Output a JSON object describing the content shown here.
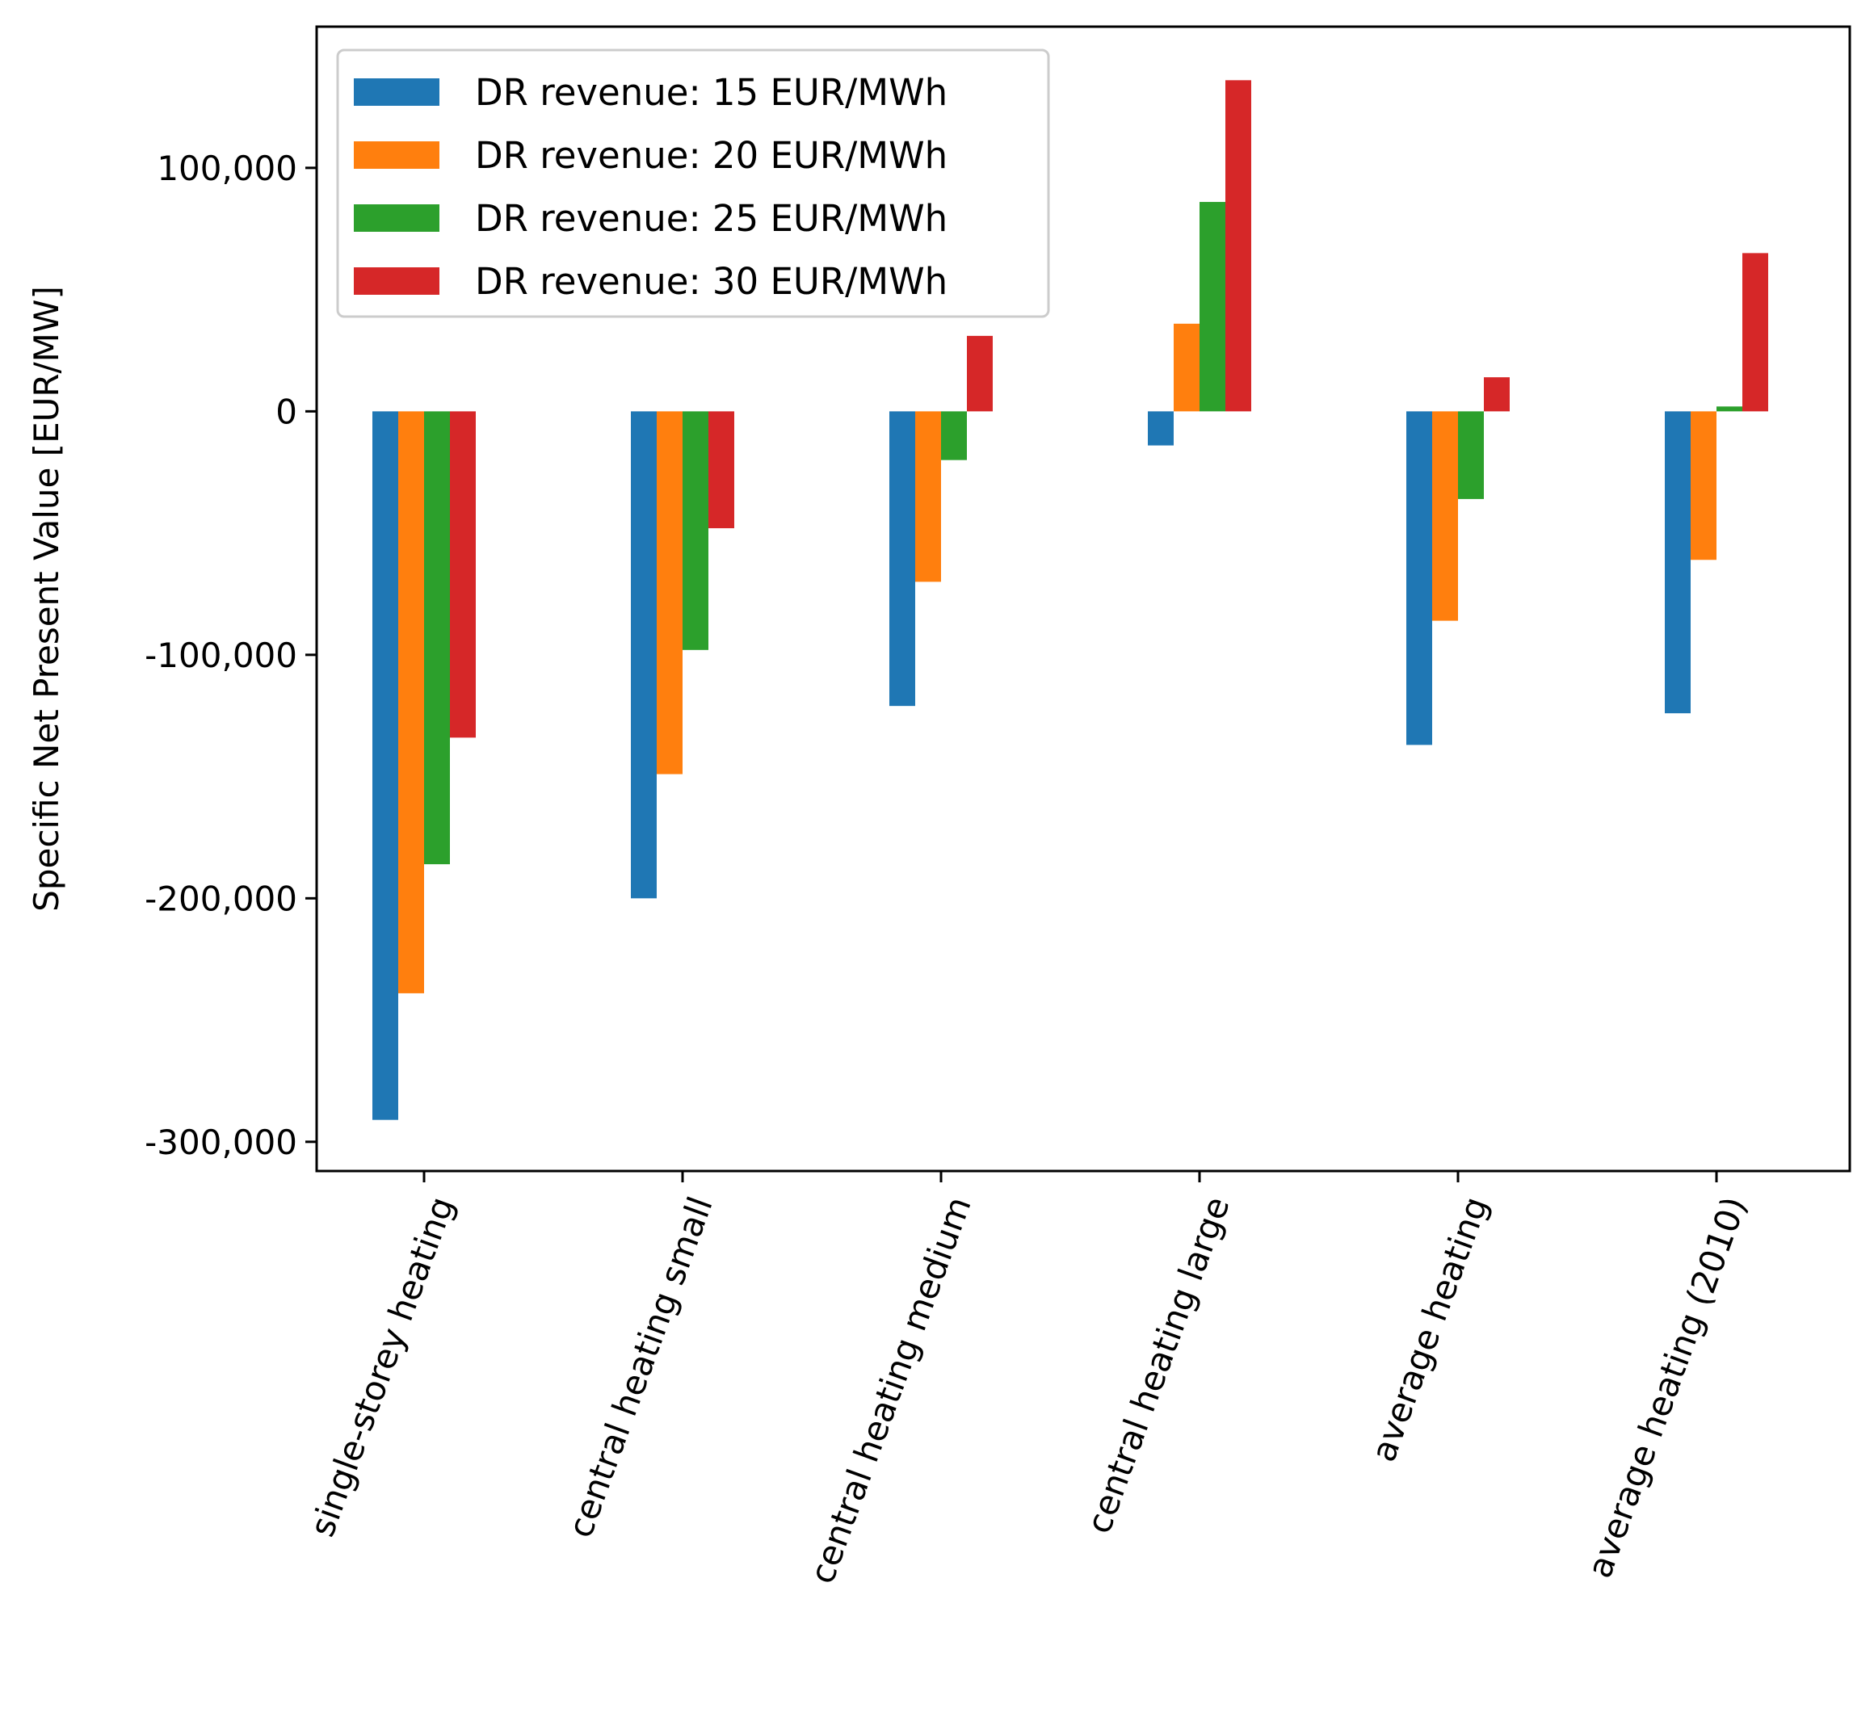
{
  "chart_data": {
    "type": "bar",
    "title": "",
    "xlabel": "",
    "ylabel": "Specific Net Present Value [EUR/MW]",
    "ylim": [
      -312000,
      158000
    ],
    "yticks": [
      -300000,
      -200000,
      -100000,
      0,
      100000
    ],
    "ytick_labels": [
      "-300,000",
      "-200,000",
      "-100,000",
      "0",
      "100,000"
    ],
    "categories": [
      "single-storey heating",
      "central heating small",
      "central heating medium",
      "central heating large",
      "average heating",
      "average heating (2010)"
    ],
    "series": [
      {
        "name": "DR revenue: 15 EUR/MWh",
        "color": "#1f77b4",
        "values": [
          -291000,
          -200000,
          -121000,
          -14000,
          -137000,
          -124000
        ]
      },
      {
        "name": "DR revenue: 20 EUR/MWh",
        "color": "#ff7f0e",
        "values": [
          -239000,
          -149000,
          -70000,
          36000,
          -86000,
          -61000
        ]
      },
      {
        "name": "DR revenue: 25 EUR/MWh",
        "color": "#2ca02c",
        "values": [
          -186000,
          -98000,
          -20000,
          86000,
          -36000,
          2000
        ]
      },
      {
        "name": "DR revenue: 30 EUR/MWh",
        "color": "#d62728",
        "values": [
          -134000,
          -48000,
          31000,
          136000,
          14000,
          65000
        ]
      }
    ],
    "grid": false,
    "legend_position": "top-left",
    "xtick_rotation": 70
  }
}
